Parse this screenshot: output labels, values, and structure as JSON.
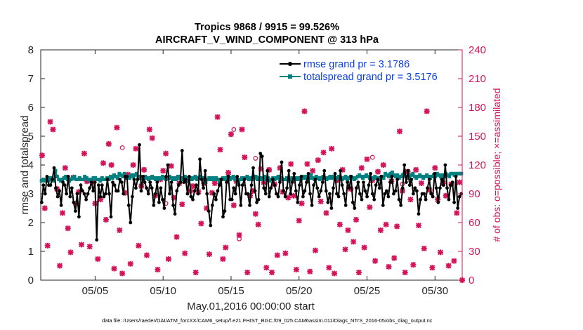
{
  "chart_data": {
    "type": "line",
    "title_line1": "Tropics 9868 / 9915 = 99.526%",
    "title_line2": "AIRCRAFT_V_WIND_COMPONENT @ 313 hPa",
    "xlabel": "May.01,2016 00:00:00 start",
    "ylabel_left": "rmse and totalspread",
    "ylabel_right": "# of obs: o=possible; ×=assimilated",
    "footnote": "data file: /Users/raeder/DAI/ATM_forcXX/CAM6_setup/f.e21.FHIST_BGC.f09_025.CAM6assim.011/Diags_NTrS_2016-05/obs_diag_output.nc",
    "x_range_days": [
      1,
      32
    ],
    "ylim_left": [
      0,
      8
    ],
    "ylim_right": [
      0,
      240
    ],
    "x_ticks": [
      {
        "day": 5,
        "label": "05/05"
      },
      {
        "day": 10,
        "label": "05/10"
      },
      {
        "day": 15,
        "label": "05/15"
      },
      {
        "day": 20,
        "label": "05/20"
      },
      {
        "day": 25,
        "label": "05/25"
      },
      {
        "day": 30,
        "label": "05/30"
      }
    ],
    "y_ticks_left": [
      "0",
      "1",
      "2",
      "3",
      "4",
      "5",
      "6",
      "7",
      "8"
    ],
    "y_ticks_right": [
      "0",
      "30",
      "60",
      "90",
      "120",
      "150",
      "180",
      "210",
      "240"
    ],
    "colors": {
      "rmse": "#000000",
      "spread": "#008080",
      "obs": "#d4145a",
      "legend_text": "#0b3fe0"
    },
    "series": [
      {
        "name": "rmse grand pr = 3.1786",
        "color": "#000000",
        "values": [
          2.7,
          3.3,
          3.0,
          3.6,
          3.3,
          3.3,
          3.5,
          3.9,
          3.2,
          2.9,
          3.1,
          2.6,
          3.4,
          3.3,
          3.0,
          3.6,
          2.9,
          3.2,
          2.7,
          2.4,
          3.0,
          2.2,
          3.3,
          3.1,
          3.0,
          2.8,
          3.0,
          3.2,
          3.4,
          3.1,
          3.4,
          1.4,
          3.3,
          2.9,
          3.3,
          2.9,
          3.0,
          3.5,
          3.0,
          2.2,
          3.4,
          3.3,
          3.1,
          3.1,
          3.5,
          3.4,
          3.0,
          3.6,
          3.6,
          2.6,
          2.0,
          2.9,
          3.5,
          3.2,
          3.5,
          4.7,
          3.1,
          3.6,
          3.4,
          3.2,
          3.0,
          3.4,
          3.2,
          2.6,
          3.0,
          3.4,
          2.7,
          3.2,
          2.8,
          2.5,
          3.6,
          4.0,
          3.0,
          3.4,
          2.6,
          2.3,
          3.1,
          3.3,
          3.4,
          4.5,
          3.4,
          3.5,
          3.0,
          3.6,
          2.9,
          2.8,
          3.1,
          3.3,
          3.0,
          4.2,
          3.5,
          3.2,
          3.8,
          3.0,
          2.4,
          1.9,
          2.6,
          3.0,
          2.8,
          3.1,
          3.3,
          3.5,
          2.2,
          2.4,
          3.4,
          3.6,
          2.8,
          2.8,
          3.2,
          3.0,
          3.6,
          3.3,
          2.6,
          3.3,
          3.5,
          3.0,
          3.0,
          2.6,
          3.3,
          3.9,
          3.1,
          2.7,
          2.8,
          4.4,
          4.3,
          3.2,
          3.0,
          3.8,
          2.9,
          3.2,
          3.5,
          3.3,
          3.0,
          2.9,
          3.4,
          4.1,
          3.1,
          2.9,
          3.2,
          3.8,
          3.0,
          3.4,
          3.7,
          3.1,
          2.7,
          3.3,
          3.6,
          2.9,
          3.1,
          3.4,
          3.7,
          3.0,
          2.6,
          3.3,
          3.5,
          3.2,
          2.9,
          3.1,
          3.4,
          3.8,
          3.1,
          2.7,
          3.0,
          2.5,
          3.2,
          3.7,
          3.0,
          2.9,
          3.8,
          3.3,
          3.0,
          2.6,
          3.4,
          3.2,
          3.6,
          2.7,
          2.5,
          3.2,
          3.4,
          3.0,
          2.8,
          3.4,
          3.1,
          2.9,
          3.3,
          3.7,
          3.0,
          2.8,
          3.3,
          3.5,
          3.2,
          3.6,
          2.6,
          3.0,
          3.1,
          2.9,
          3.4,
          3.6,
          3.0,
          3.1,
          3.5,
          2.8,
          2.6,
          3.2,
          4.0,
          3.4,
          3.8,
          3.3,
          3.5,
          3.0,
          3.2,
          3.1,
          2.3,
          2.8,
          3.0,
          3.0,
          2.8,
          3.2,
          3.5,
          3.0,
          2.9,
          3.7,
          3.2,
          2.7,
          3.2,
          3.5,
          3.3,
          4.0,
          3.2,
          2.8,
          3.3,
          3.4,
          2.7,
          3.6,
          2.5,
          2.9,
          3.0
        ]
      },
      {
        "name": "totalspread grand pr = 3.5176",
        "color": "#008080",
        "values": [
          3.45,
          3.5,
          3.45,
          3.5,
          3.45,
          3.55,
          3.5,
          3.45,
          3.8,
          3.6,
          3.5,
          3.45,
          3.5,
          3.55,
          3.6,
          3.5,
          3.45,
          3.5,
          3.55,
          3.6,
          3.5,
          3.5,
          3.55,
          3.5,
          3.5,
          3.6,
          3.55,
          3.5,
          3.45,
          3.5,
          3.55,
          3.55,
          3.5,
          3.5,
          3.45,
          3.55,
          3.5,
          3.5,
          3.55,
          3.5,
          3.6,
          3.55,
          3.65,
          3.6,
          3.55,
          3.7,
          3.65,
          3.6,
          3.7,
          3.55,
          3.6,
          3.55,
          3.65,
          3.6,
          3.65,
          3.7,
          3.55,
          3.6,
          3.55,
          3.5,
          3.6,
          3.55,
          3.5,
          3.55,
          3.6,
          3.55,
          3.5,
          3.55,
          3.5,
          3.55,
          3.6,
          3.55,
          3.5,
          3.55,
          3.6,
          3.55,
          3.5,
          3.55,
          3.5,
          3.6,
          3.55,
          3.5,
          3.55,
          3.6,
          3.55,
          3.45,
          3.55,
          3.5,
          3.55,
          3.6,
          3.5,
          3.55,
          3.6,
          3.55,
          3.5,
          3.4,
          3.5,
          3.55,
          3.5,
          3.55,
          3.5,
          3.55,
          3.5,
          3.4,
          3.5,
          3.55,
          3.5,
          3.55,
          3.6,
          3.5,
          3.55,
          3.6,
          3.5,
          3.55,
          3.4,
          3.5,
          3.55,
          3.5,
          3.55,
          3.6,
          3.5,
          3.55,
          3.5,
          3.55,
          3.6,
          3.5,
          3.55,
          3.5,
          3.55,
          3.6,
          3.5,
          3.55,
          3.45,
          3.5,
          3.55,
          3.5,
          3.55,
          3.6,
          3.5,
          3.55,
          3.5,
          3.5,
          3.55,
          3.45,
          3.5,
          3.55,
          3.5,
          3.55,
          3.5,
          3.55,
          3.5,
          3.6,
          3.55,
          3.6,
          3.5,
          3.55,
          3.65,
          3.55,
          3.5,
          3.6,
          3.55,
          3.5,
          3.55,
          3.6,
          3.55,
          3.5,
          3.55,
          3.6,
          3.55,
          3.6,
          3.5,
          3.55,
          3.6,
          3.55,
          3.5,
          3.55,
          3.6,
          3.5,
          3.55,
          3.6,
          3.55,
          3.5,
          3.55,
          3.6,
          3.65,
          3.6,
          3.55,
          3.6,
          3.65,
          3.6,
          3.55,
          3.5,
          3.55,
          3.6,
          3.55,
          3.5,
          3.55,
          3.6,
          3.55,
          3.7,
          3.65,
          3.6,
          3.7,
          3.75,
          3.65,
          3.6,
          3.65,
          3.55,
          3.6,
          3.65,
          3.7,
          3.6,
          3.55,
          3.6,
          3.65,
          3.7,
          3.6,
          3.55,
          3.6,
          3.65,
          3.6,
          3.55,
          3.6,
          3.65,
          3.6,
          3.55,
          3.6,
          3.65,
          3.6,
          3.7,
          3.65,
          3.6,
          3.65,
          3.6,
          3.7,
          3.65,
          3.6,
          3.7,
          3.7,
          3.65,
          3.7,
          3.7,
          3.7,
          3.7
        ]
      }
    ],
    "obs_assimilated": [
      {
        "day": 1.1,
        "n": 130
      },
      {
        "day": 1.3,
        "n": 75
      },
      {
        "day": 1.5,
        "n": 36
      },
      {
        "day": 1.7,
        "n": 165
      },
      {
        "day": 1.9,
        "n": 157
      },
      {
        "day": 2.2,
        "n": 95
      },
      {
        "day": 2.4,
        "n": 15
      },
      {
        "day": 2.6,
        "n": 70
      },
      {
        "day": 2.8,
        "n": 117
      },
      {
        "day": 3.0,
        "n": 54
      },
      {
        "day": 3.2,
        "n": 29
      },
      {
        "day": 3.4,
        "n": 107
      },
      {
        "day": 3.6,
        "n": 80
      },
      {
        "day": 3.8,
        "n": 92
      },
      {
        "day": 4.0,
        "n": 37
      },
      {
        "day": 4.2,
        "n": 132
      },
      {
        "day": 4.4,
        "n": 103
      },
      {
        "day": 4.6,
        "n": 35
      },
      {
        "day": 4.8,
        "n": 102
      },
      {
        "day": 5.0,
        "n": 80
      },
      {
        "day": 5.2,
        "n": 22
      },
      {
        "day": 5.4,
        "n": 84
      },
      {
        "day": 5.6,
        "n": 122
      },
      {
        "day": 5.8,
        "n": 63
      },
      {
        "day": 6.0,
        "n": 142
      },
      {
        "day": 6.2,
        "n": 120
      },
      {
        "day": 6.4,
        "n": 12
      },
      {
        "day": 6.6,
        "n": 159
      },
      {
        "day": 6.8,
        "n": 52
      },
      {
        "day": 7.0,
        "n": 7
      },
      {
        "day": 7.2,
        "n": 91
      },
      {
        "day": 7.4,
        "n": 110
      },
      {
        "day": 7.6,
        "n": 17
      },
      {
        "day": 7.8,
        "n": 120
      },
      {
        "day": 8.0,
        "n": 137
      },
      {
        "day": 8.2,
        "n": 36
      },
      {
        "day": 8.4,
        "n": 98
      },
      {
        "day": 8.6,
        "n": 115
      },
      {
        "day": 8.8,
        "n": 26
      },
      {
        "day": 9.0,
        "n": 157
      },
      {
        "day": 9.2,
        "n": 148
      },
      {
        "day": 9.4,
        "n": 88
      },
      {
        "day": 9.6,
        "n": 11
      },
      {
        "day": 9.8,
        "n": 105
      },
      {
        "day": 10.0,
        "n": 114
      },
      {
        "day": 10.2,
        "n": 132
      },
      {
        "day": 10.4,
        "n": 22
      },
      {
        "day": 10.6,
        "n": 119
      },
      {
        "day": 10.8,
        "n": 86
      },
      {
        "day": 11.0,
        "n": 45
      },
      {
        "day": 11.2,
        "n": 101
      },
      {
        "day": 11.4,
        "n": 79
      },
      {
        "day": 11.6,
        "n": 28
      },
      {
        "day": 11.8,
        "n": 104
      },
      {
        "day": 12.0,
        "n": 93
      },
      {
        "day": 12.2,
        "n": 98
      },
      {
        "day": 12.4,
        "n": 8
      },
      {
        "day": 12.6,
        "n": 92
      },
      {
        "day": 12.8,
        "n": 59
      },
      {
        "day": 13.0,
        "n": 101
      },
      {
        "day": 13.2,
        "n": 75
      },
      {
        "day": 13.4,
        "n": 27
      },
      {
        "day": 13.6,
        "n": 91
      },
      {
        "day": 13.8,
        "n": 101
      },
      {
        "day": 14.0,
        "n": 170
      },
      {
        "day": 14.2,
        "n": 136
      },
      {
        "day": 14.4,
        "n": 22
      },
      {
        "day": 14.6,
        "n": 34
      },
      {
        "day": 14.8,
        "n": 112
      },
      {
        "day": 15.0,
        "n": 152
      },
      {
        "day": 15.2,
        "n": 78
      },
      {
        "day": 15.4,
        "n": 103
      },
      {
        "day": 15.6,
        "n": 47
      },
      {
        "day": 15.8,
        "n": 157
      },
      {
        "day": 16.0,
        "n": 128
      },
      {
        "day": 16.2,
        "n": 8
      },
      {
        "day": 16.4,
        "n": 88
      },
      {
        "day": 16.6,
        "n": 93
      },
      {
        "day": 16.8,
        "n": 69
      },
      {
        "day": 17.0,
        "n": 58
      },
      {
        "day": 17.2,
        "n": 116
      },
      {
        "day": 17.4,
        "n": 102
      },
      {
        "day": 17.6,
        "n": 13
      },
      {
        "day": 17.8,
        "n": 115
      },
      {
        "day": 18.0,
        "n": 8
      },
      {
        "day": 18.2,
        "n": 100
      },
      {
        "day": 18.4,
        "n": 26
      },
      {
        "day": 18.6,
        "n": 117
      },
      {
        "day": 18.8,
        "n": 92
      },
      {
        "day": 19.0,
        "n": 28
      },
      {
        "day": 19.2,
        "n": 86
      },
      {
        "day": 19.4,
        "n": 121
      },
      {
        "day": 19.6,
        "n": 88
      },
      {
        "day": 19.8,
        "n": 11
      },
      {
        "day": 20.0,
        "n": 62
      },
      {
        "day": 20.2,
        "n": 80
      },
      {
        "day": 20.4,
        "n": 176
      },
      {
        "day": 20.6,
        "n": 121
      },
      {
        "day": 20.8,
        "n": 9
      },
      {
        "day": 21.0,
        "n": 114
      },
      {
        "day": 21.2,
        "n": 31
      },
      {
        "day": 21.4,
        "n": 125
      },
      {
        "day": 21.6,
        "n": 82
      },
      {
        "day": 21.8,
        "n": 133
      },
      {
        "day": 22.0,
        "n": 70
      },
      {
        "day": 22.2,
        "n": 13
      },
      {
        "day": 22.4,
        "n": 137
      },
      {
        "day": 22.6,
        "n": 7
      },
      {
        "day": 22.8,
        "n": 104
      },
      {
        "day": 23.0,
        "n": 58
      },
      {
        "day": 23.2,
        "n": 115
      },
      {
        "day": 23.4,
        "n": 32
      },
      {
        "day": 23.6,
        "n": 52
      },
      {
        "day": 23.8,
        "n": 95
      },
      {
        "day": 24.0,
        "n": 40
      },
      {
        "day": 24.2,
        "n": 63
      },
      {
        "day": 24.4,
        "n": 8
      },
      {
        "day": 24.6,
        "n": 117
      },
      {
        "day": 24.8,
        "n": 34
      },
      {
        "day": 25.0,
        "n": 126
      },
      {
        "day": 25.2,
        "n": 76
      },
      {
        "day": 25.4,
        "n": 104
      },
      {
        "day": 25.6,
        "n": 20
      },
      {
        "day": 25.8,
        "n": 113
      },
      {
        "day": 26.0,
        "n": 52
      },
      {
        "day": 26.2,
        "n": 120
      },
      {
        "day": 26.4,
        "n": 58
      },
      {
        "day": 26.6,
        "n": 14
      },
      {
        "day": 26.8,
        "n": 103
      },
      {
        "day": 27.0,
        "n": 23
      },
      {
        "day": 27.2,
        "n": 56
      },
      {
        "day": 27.4,
        "n": 155
      },
      {
        "day": 27.6,
        "n": 93
      },
      {
        "day": 27.8,
        "n": 8
      },
      {
        "day": 28.0,
        "n": 113
      },
      {
        "day": 28.2,
        "n": 84
      },
      {
        "day": 28.4,
        "n": 16
      },
      {
        "day": 28.6,
        "n": 115
      },
      {
        "day": 28.8,
        "n": 57
      },
      {
        "day": 29.0,
        "n": 101
      },
      {
        "day": 29.2,
        "n": 33
      },
      {
        "day": 29.4,
        "n": 176
      },
      {
        "day": 29.6,
        "n": 94
      },
      {
        "day": 29.8,
        "n": 13
      },
      {
        "day": 30.0,
        "n": 117
      },
      {
        "day": 30.2,
        "n": 84
      },
      {
        "day": 30.4,
        "n": 29
      },
      {
        "day": 30.6,
        "n": 101
      },
      {
        "day": 30.8,
        "n": 88
      },
      {
        "day": 31.0,
        "n": 15
      },
      {
        "day": 31.2,
        "n": 100
      },
      {
        "day": 31.4,
        "n": 20
      },
      {
        "day": 31.6,
        "n": 70
      },
      {
        "day": 31.8,
        "n": 102
      },
      {
        "day": 32.0,
        "n": 0
      }
    ],
    "obs_possible_only": [
      {
        "day": 7.0,
        "n": 138
      },
      {
        "day": 10.2,
        "n": 80
      },
      {
        "day": 15.2,
        "n": 157
      },
      {
        "day": 15.6,
        "n": 43
      },
      {
        "day": 16.8,
        "n": 127
      },
      {
        "day": 25.4,
        "n": 128
      },
      {
        "day": 27.6,
        "n": 100
      }
    ],
    "legend": {
      "position": "top-right",
      "entries": [
        "rmse grand pr = 3.1786",
        "totalspread grand pr = 3.5176"
      ]
    }
  }
}
